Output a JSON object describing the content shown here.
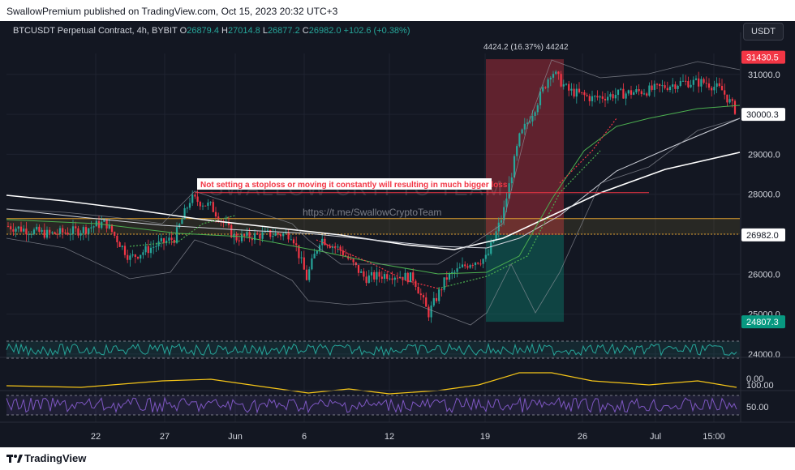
{
  "header": {
    "published": "SwallowPremium published on TradingView.com, Oct 15, 2023 20:32 UTC+3"
  },
  "symbol": {
    "name": "BTCUSDT Perpetual Contract, 4h, BYBIT",
    "o_label": "O",
    "o": "26879.4",
    "h_label": "H",
    "h": "27014.8",
    "l_label": "L",
    "l": "26877.2",
    "c_label": "C",
    "c": "26982.0",
    "change": "+102.6 (+0.38%)"
  },
  "currency_button": "USDT",
  "price_axis": [
    "31000.0",
    "30000.0",
    "29000.0",
    "28000.0",
    "27000.0",
    "26000.0",
    "25000.0",
    "24000.0"
  ],
  "price_tags": [
    {
      "label": "31430.5",
      "color": "#f23645",
      "price": 31430.5
    },
    {
      "label": "30000.3",
      "color": "#ffffff",
      "price": 30000.3
    },
    {
      "label": "26982.0",
      "color": "#ffffff",
      "price": 26982.0
    },
    {
      "label": "24807.3",
      "color": "#089981",
      "price": 24807.3
    }
  ],
  "indicator_axis": {
    "rsi_zero": "0.00",
    "osc_top": "100.00",
    "osc_mid": "50.00"
  },
  "time_axis": [
    "22",
    "27",
    "Jun",
    "6",
    "12",
    "19",
    "26",
    "Jul",
    "15:00"
  ],
  "annotations": {
    "position_label": "4424.2 (16.37%) 44242",
    "warning": "Not setting a stoploss or moving it constantly will resulting in much bigger loss",
    "watermark": "SWALLOW CRYPTO TEAM",
    "link": "https://t.me/SwallowCryptoTeam"
  },
  "colors": {
    "up": "#26a69a",
    "down": "#f23645",
    "background": "#131722",
    "accent": "#2962ff"
  },
  "footer": {
    "brand": "TradingView"
  }
}
